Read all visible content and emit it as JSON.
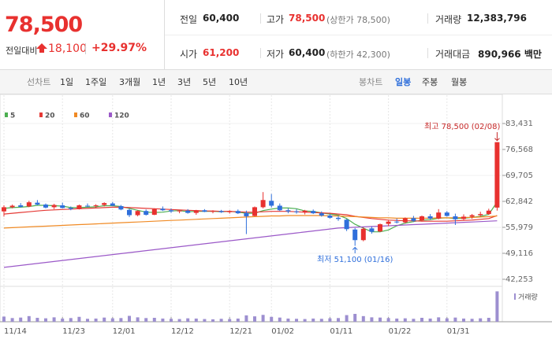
{
  "summary": {
    "price": "78,500",
    "change_label": "전일대비",
    "change": "18,100",
    "change_pct": "+29.97%"
  },
  "stats": [
    {
      "label": "전일",
      "value": "60,400"
    },
    {
      "label": "고가",
      "value": "78,500",
      "note": "(상한가 78,500)"
    },
    {
      "label": "거래량",
      "value": "12,383,796"
    },
    {
      "label": "시가",
      "value": "61,200"
    },
    {
      "label": "저가",
      "value": "60,400",
      "note": "(하한가 42,300)"
    },
    {
      "label": "거래대금",
      "value": "890,966 백만"
    }
  ],
  "tabs": {
    "line_label": "선차트",
    "line_periods": [
      "1일",
      "1주일",
      "3개월",
      "1년",
      "3년",
      "5년",
      "10년"
    ],
    "candle_label": "봉차트",
    "candle_periods": [
      "일봉",
      "주봉",
      "월봉"
    ]
  },
  "chart_data": {
    "type": "candlestick",
    "categories": [
      "11/14",
      null,
      null,
      null,
      null,
      null,
      null,
      "11/23",
      null,
      null,
      null,
      null,
      null,
      "12/01",
      null,
      null,
      null,
      null,
      null,
      null,
      "12/12",
      null,
      null,
      null,
      null,
      null,
      null,
      "12/21",
      null,
      null,
      null,
      null,
      "01/02",
      null,
      null,
      null,
      null,
      null,
      null,
      "01/11",
      null,
      null,
      null,
      null,
      null,
      null,
      "01/22",
      null,
      null,
      null,
      null,
      null,
      null,
      "01/31",
      null,
      null,
      null,
      null,
      null,
      null
    ],
    "open": [
      60200,
      61300,
      61800,
      61500,
      62500,
      62000,
      61300,
      61800,
      61100,
      60800,
      61700,
      61600,
      61900,
      62300,
      61600,
      60600,
      59200,
      60300,
      59300,
      60900,
      60500,
      60200,
      60400,
      59800,
      60500,
      60100,
      60300,
      60000,
      60300,
      59800,
      59000,
      61300,
      63000,
      61700,
      60500,
      60200,
      59900,
      60300,
      59700,
      59100,
      58500,
      58000,
      55400,
      52600,
      55700,
      54900,
      56900,
      57500,
      57300,
      58400,
      57800,
      58900,
      58300,
      59900,
      58900,
      58200,
      58800,
      59200,
      59500,
      61200
    ],
    "high": [
      61800,
      62000,
      62400,
      63000,
      63200,
      62300,
      62200,
      62500,
      61500,
      62000,
      62300,
      62100,
      62600,
      62700,
      61900,
      60900,
      60500,
      60700,
      61000,
      61500,
      61000,
      60600,
      60800,
      60600,
      60800,
      60500,
      60600,
      60500,
      60700,
      60400,
      61500,
      65300,
      64800,
      62300,
      61000,
      60800,
      60600,
      60700,
      60200,
      59500,
      59000,
      58200,
      55800,
      56000,
      56200,
      57000,
      57800,
      58300,
      58600,
      59000,
      59100,
      59500,
      60800,
      60300,
      59600,
      59400,
      59500,
      60100,
      60900,
      78500
    ],
    "low": [
      58800,
      61000,
      61200,
      61300,
      61800,
      61000,
      60800,
      61000,
      60500,
      60700,
      61300,
      61100,
      61500,
      61600,
      60500,
      58700,
      58900,
      59100,
      59200,
      60300,
      59800,
      59700,
      59600,
      59300,
      60000,
      59700,
      59800,
      59600,
      59500,
      54200,
      58900,
      61000,
      61200,
      60300,
      59700,
      59600,
      59400,
      59500,
      58800,
      58300,
      57700,
      55000,
      51100,
      52300,
      54300,
      54700,
      56300,
      57000,
      57000,
      57400,
      57500,
      58000,
      58100,
      58800,
      56600,
      57900,
      58200,
      58800,
      59300,
      60400
    ],
    "close": [
      61300,
      61700,
      61400,
      62600,
      62000,
      61200,
      61900,
      61100,
      60800,
      61800,
      61600,
      61800,
      62400,
      61700,
      60700,
      59200,
      60300,
      59300,
      60800,
      60500,
      60200,
      60400,
      59800,
      60500,
      60100,
      60300,
      60000,
      60300,
      59700,
      58900,
      61300,
      63200,
      61700,
      60500,
      60200,
      60000,
      60400,
      59700,
      59100,
      58500,
      58200,
      55500,
      52600,
      55600,
      54800,
      56800,
      57500,
      57300,
      58400,
      57700,
      58900,
      58300,
      59900,
      59000,
      58100,
      58800,
      59200,
      59500,
      60400,
      78500
    ],
    "up_color": "#e8312f",
    "down_color": "#2f6fdb",
    "moving_averages": [
      {
        "name": "5",
        "color": "#4caf50",
        "values": [
          61000,
          61200,
          61300,
          61500,
          61800,
          61800,
          61700,
          61600,
          61200,
          61200,
          61300,
          61400,
          61700,
          61700,
          61500,
          61000,
          60500,
          60000,
          59900,
          60000,
          60300,
          60400,
          60100,
          60200,
          60200,
          60200,
          60100,
          60200,
          60000,
          59700,
          59700,
          60400,
          60800,
          61100,
          61100,
          60900,
          60300,
          60200,
          59800,
          59500,
          59200,
          58300,
          56800,
          55800,
          54800,
          54800,
          55300,
          56400,
          57100,
          57500,
          57900,
          58000,
          58400,
          58500,
          58300,
          58400,
          58600,
          58900,
          59400,
          62700
        ]
      },
      {
        "name": "20",
        "color": "#e53935",
        "values": [
          59500,
          59700,
          59900,
          60100,
          60300,
          60500,
          60600,
          60700,
          60800,
          60900,
          61000,
          61100,
          61200,
          61300,
          61300,
          61200,
          61100,
          61000,
          60900,
          60800,
          60700,
          60600,
          60500,
          60400,
          60300,
          60300,
          60200,
          60200,
          60100,
          60000,
          60000,
          60100,
          60200,
          60200,
          60200,
          60100,
          60000,
          59900,
          59800,
          59700,
          59500,
          59300,
          58900,
          58600,
          58300,
          58100,
          57900,
          57800,
          57700,
          57700,
          57600,
          57600,
          57600,
          57600,
          57700,
          57800,
          57900,
          58100,
          58300,
          59100
        ]
      },
      {
        "name": "60",
        "color": "#f08a24",
        "values": [
          55800,
          55900,
          56000,
          56100,
          56200,
          56300,
          56400,
          56500,
          56600,
          56700,
          56800,
          56900,
          57000,
          57100,
          57200,
          57300,
          57400,
          57500,
          57600,
          57700,
          57800,
          57900,
          58000,
          58100,
          58200,
          58300,
          58400,
          58500,
          58600,
          58700,
          58800,
          58900,
          59000,
          59000,
          59100,
          59100,
          59100,
          59100,
          59100,
          59000,
          59000,
          58900,
          58800,
          58700,
          58600,
          58500,
          58500,
          58400,
          58400,
          58400,
          58400,
          58400,
          58500,
          58500,
          58500,
          58600,
          58600,
          58700,
          58800,
          59000
        ]
      },
      {
        "name": "120",
        "color": "#9b59c8",
        "values": [
          45400,
          45660,
          45920,
          46180,
          46440,
          46700,
          46960,
          47220,
          47480,
          47740,
          48000,
          48260,
          48520,
          48780,
          49040,
          49300,
          49560,
          49820,
          50080,
          50340,
          50600,
          50860,
          51120,
          51380,
          51640,
          51900,
          52160,
          52420,
          52680,
          52940,
          53200,
          53460,
          53720,
          53980,
          54240,
          54500,
          54760,
          55020,
          55280,
          55540,
          55800,
          55900,
          56000,
          56100,
          56200,
          56300,
          56400,
          56500,
          56600,
          56700,
          56800,
          56900,
          57000,
          57100,
          57200,
          57300,
          57400,
          57500,
          57600,
          57700
        ]
      }
    ],
    "volume": {
      "name": "거래량",
      "color": "#9d8fd0",
      "ylim": [
        0,
        12500000
      ],
      "values": [
        2100000,
        1500000,
        1700000,
        2300000,
        1600000,
        1400000,
        1800000,
        1300000,
        1500000,
        2000000,
        1200000,
        1300000,
        1700000,
        1400000,
        1500000,
        2400000,
        1800000,
        1500000,
        1600000,
        1300000,
        1200000,
        1100000,
        1400000,
        1300000,
        1100000,
        1000000,
        1200000,
        1100000,
        1300000,
        2600000,
        2200000,
        2800000,
        2000000,
        1700000,
        1300000,
        1200000,
        1100000,
        1300000,
        1200000,
        1400000,
        1500000,
        2700000,
        3200000,
        2300000,
        1800000,
        1700000,
        1500000,
        1300000,
        1400000,
        1200000,
        1600000,
        1300000,
        1800000,
        1400000,
        1700000,
        1300000,
        1200000,
        1400000,
        1600000,
        12383796
      ]
    },
    "ylim": [
      42253,
      83431
    ],
    "yticks": [
      {
        "value": 83431,
        "label": "83,431"
      },
      {
        "value": 76568,
        "label": "76,568"
      },
      {
        "value": 69705,
        "label": "69,705"
      },
      {
        "value": 62842,
        "label": "62,842"
      },
      {
        "value": 55979,
        "label": "55,979"
      },
      {
        "value": 49116,
        "label": "49,116"
      },
      {
        "value": 42253,
        "label": "42,253"
      }
    ],
    "grid": true,
    "high_annotation": "최고 78,500 (02/08)",
    "low_annotation": "최저 51,100 (01/16)"
  }
}
